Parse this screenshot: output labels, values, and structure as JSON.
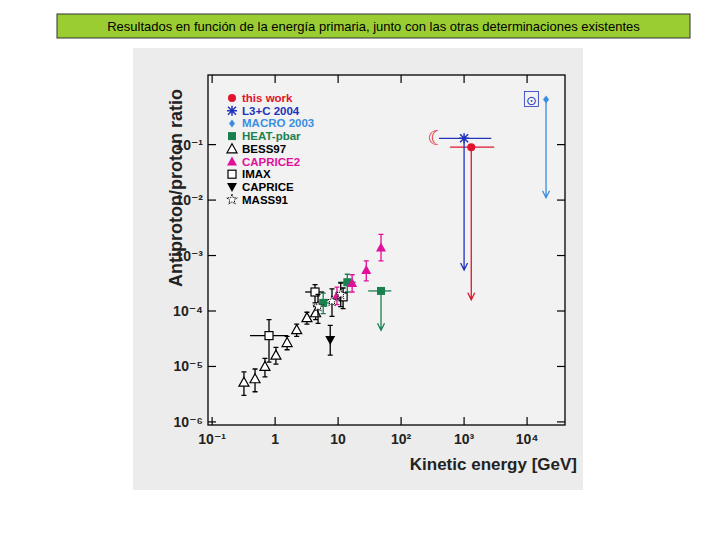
{
  "chart_data": {
    "type": "scatter",
    "title": "Resultados en función de la energía primaria, junto con las otras determinaciones existentes",
    "x_label": "Kinetic energy [GeV]",
    "y_label": "Antiproton/proton ratio",
    "log": true,
    "grid": false,
    "legend": "upper left",
    "xlim": [
      0.086,
      40000
    ],
    "ylim": [
      8.8e-07,
      1.8
    ],
    "xticks": [
      {
        "value": 0.1,
        "label": "10⁻¹"
      },
      1,
      10,
      {
        "value": 100,
        "label": "10²"
      },
      {
        "value": 1000,
        "label": "10³"
      },
      {
        "value": 10000,
        "label": "10⁴"
      }
    ],
    "yticks": [
      {
        "value": 1e-06,
        "label": "10⁻⁶"
      },
      {
        "value": 1e-05,
        "label": "10⁻⁵"
      },
      {
        "value": 0.0001,
        "label": "10⁻⁴"
      },
      {
        "value": 0.001,
        "label": "10⁻³"
      },
      {
        "value": 0.01,
        "label": "10⁻²"
      },
      {
        "value": 0.1,
        "label": "10⁻¹"
      }
    ],
    "series": [
      {
        "name": "this work",
        "color": "#e0142c",
        "marker": "circle",
        "x": [
          1300
        ],
        "values": [
          0.09
        ],
        "y_low": [
          0.00016
        ],
        "y_high": [
          null
        ],
        "x_low": [
          600
        ],
        "x_high": [
          3000
        ],
        "upper_limit": [
          true
        ]
      },
      {
        "name": "L3+C 2004",
        "color": "#2233bb",
        "marker": "asterisk",
        "x": [
          1000
        ],
        "values": [
          0.13
        ],
        "y_low": [
          0.00055
        ],
        "y_high": [
          null
        ],
        "x_low": [
          400
        ],
        "x_high": [
          2700
        ],
        "upper_limit": [
          true
        ]
      },
      {
        "name": "MACRO 2003",
        "color": "#3a8ee0",
        "marker": "diamond",
        "x": [
          20000
        ],
        "values": [
          0.65
        ],
        "y_low": [
          0.011
        ],
        "y_high": [
          null
        ],
        "upper_limit": [
          true
        ]
      },
      {
        "name": "HEAT-pbar",
        "color": "#1a8050",
        "marker": "square",
        "x": [
          5.8,
          14,
          48
        ],
        "values": [
          0.00014,
          0.00033,
          0.00023
        ],
        "y_low": [
          9e-05,
          0.00022,
          4.5e-05
        ],
        "y_high": [
          0.00021,
          0.00046,
          null
        ],
        "x_low": [
          4.5,
          10,
          30
        ],
        "x_high": [
          7.5,
          19,
          70
        ],
        "upper_limit": [
          false,
          false,
          true
        ]
      },
      {
        "name": "BESS97",
        "color": "#000000",
        "marker": "triangle-open",
        "x": [
          0.32,
          0.48,
          0.69,
          1.03,
          1.55,
          2.2,
          3.2,
          4.4
        ],
        "values": [
          5.2e-06,
          6e-06,
          1e-05,
          1.6e-05,
          2.7e-05,
          4.6e-05,
          7.6e-05,
          9.3e-05
        ],
        "y_low": [
          3e-06,
          3.5e-06,
          6.5e-06,
          1.1e-05,
          2e-05,
          3.5e-05,
          5.8e-05,
          7e-05
        ],
        "y_high": [
          8e-06,
          9e-06,
          1.4e-05,
          2.2e-05,
          3.5e-05,
          5.8e-05,
          9.5e-05,
          0.00012
        ]
      },
      {
        "name": "CAPRICE2",
        "color": "#e0109a",
        "marker": "triangle",
        "x": [
          9.6,
          16.7,
          28,
          48
        ],
        "values": [
          0.00019,
          0.00032,
          0.00055,
          0.0014
        ],
        "y_low": [
          0.00013,
          0.00022,
          0.00035,
          0.0008
        ],
        "y_high": [
          0.00027,
          0.00045,
          0.0008,
          0.0024
        ]
      },
      {
        "name": "IMAX",
        "color": "#000000",
        "marker": "square-open",
        "x": [
          0.8,
          4.3,
          12
        ],
        "values": [
          3.6e-05,
          0.00022,
          0.00018
        ],
        "y_low": [
          1.2e-05,
          0.00014,
          0.00011
        ],
        "y_high": [
          7e-05,
          0.0003,
          0.00026
        ],
        "x_low": [
          0.4,
          3,
          null
        ],
        "x_high": [
          1.6,
          6,
          null
        ]
      },
      {
        "name": "CAPRICE",
        "color": "#000000",
        "marker": "triangle-down",
        "x": [
          7.5
        ],
        "values": [
          3e-05
        ],
        "y_low": [
          1.6e-05
        ],
        "y_high": [
          5.5e-05
        ]
      },
      {
        "name": "MASS91",
        "color": "#000000",
        "marker": "star-open",
        "x": [
          4.8,
          8,
          11
        ],
        "values": [
          0.00012,
          0.00015,
          0.0002
        ],
        "y_low": [
          6e-05,
          8e-05,
          0.00012
        ],
        "y_high": [
          0.0002,
          0.00025,
          0.00032
        ]
      }
    ],
    "annotations": [
      {
        "text": "☾",
        "x": 360,
        "y": 0.13,
        "color": "#e0142c"
      },
      {
        "text": "⊙",
        "x": 11700,
        "y": 0.65,
        "color": "#2233bb"
      }
    ]
  }
}
